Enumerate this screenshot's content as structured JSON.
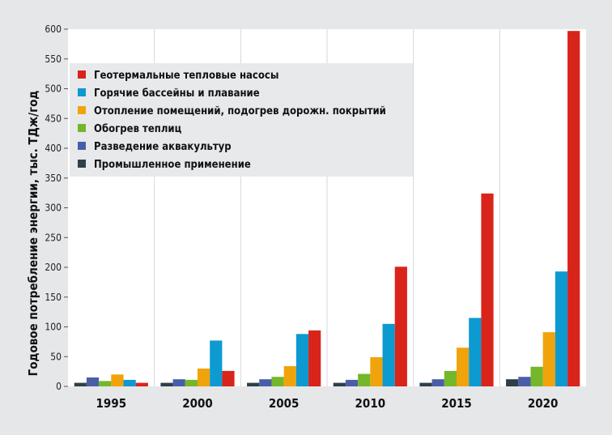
{
  "chart_data": {
    "type": "bar",
    "categories": [
      "1995",
      "2000",
      "2005",
      "2010",
      "2015",
      "2020"
    ],
    "ylabel": "Годовое потребление энергии, тыс. ТДж/год",
    "xlabel": "",
    "ylim": [
      0,
      600
    ],
    "yticks": [
      0,
      50,
      100,
      150,
      200,
      250,
      300,
      350,
      400,
      450,
      500,
      550,
      600
    ],
    "grid": "vertical separators between categories",
    "legend_position": "top-left",
    "series": [
      {
        "name": "Промышленное применение",
        "color": "#2e3f4a",
        "values": [
          6,
          6,
          6,
          6,
          6,
          12
        ]
      },
      {
        "name": "Разведение аквакультур",
        "color": "#4a5ea8",
        "values": [
          15,
          12,
          12,
          11,
          12,
          16
        ]
      },
      {
        "name": "Обогрев теплиц",
        "color": "#74b72a",
        "values": [
          9,
          11,
          16,
          21,
          26,
          33
        ]
      },
      {
        "name": "Отопление помещений, подогрев дорожн. покрытий",
        "color": "#f0a30a",
        "values": [
          20,
          30,
          34,
          49,
          65,
          91
        ]
      },
      {
        "name": "Горячие бассейны и плавание",
        "color": "#0d9ad1",
        "values": [
          11,
          77,
          88,
          105,
          115,
          193
        ]
      },
      {
        "name": "Геотермальные тепловые насосы",
        "color": "#d9241c",
        "values": [
          6,
          26,
          94,
          201,
          324,
          597
        ]
      }
    ],
    "legend_order": [
      "Геотермальные тепловые насосы",
      "Горячие бассейны и плавание",
      "Отопление помещений, подогрев дорожн. покрытий",
      "Обогрев теплиц",
      "Разведение аквакультур",
      "Промышленное применение"
    ]
  }
}
